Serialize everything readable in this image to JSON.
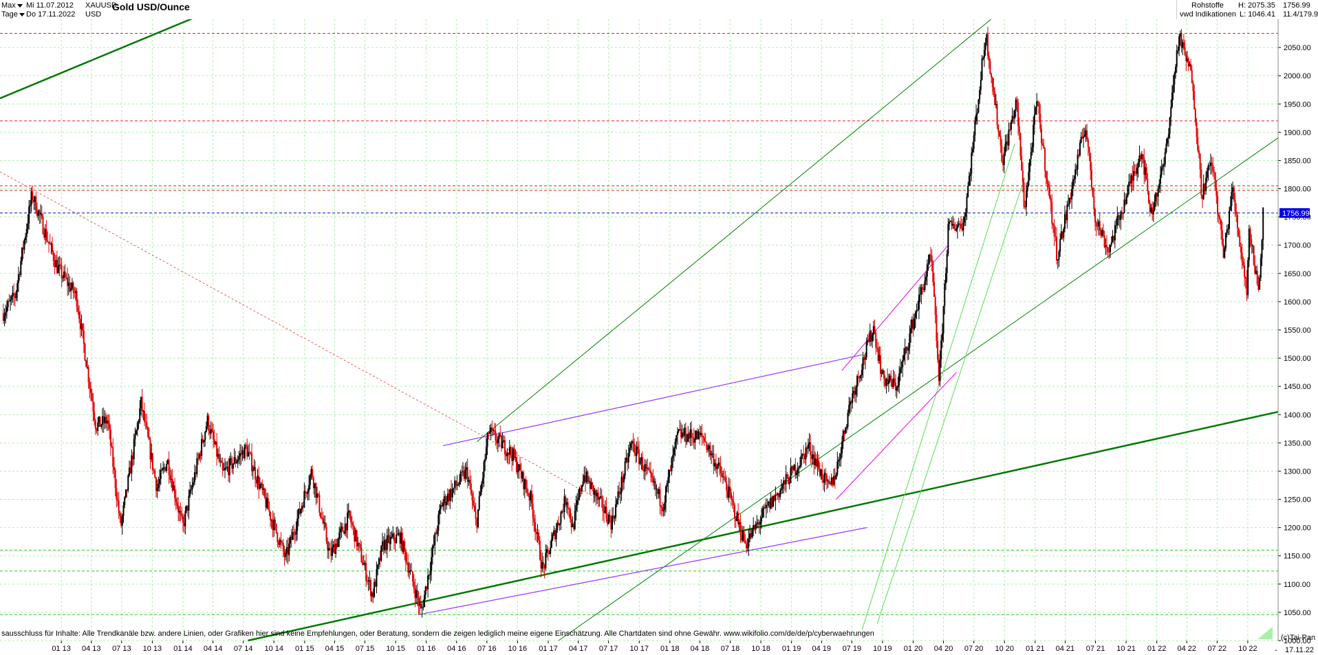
{
  "toolbar": {
    "period_label": "Max",
    "interval_label": "Tage",
    "date_from": "Mi 11.07.2012",
    "date_to": "Do 17.11.2022",
    "symbol": "XAUUSD",
    "currency": "USD",
    "title": "Gold USD/Ounce"
  },
  "info": {
    "category": "Rohstoffe",
    "source": "vwd Indikationen",
    "high": "H: 2075.35",
    "low": "L: 1046.41",
    "last": "1756.99",
    "range": "11.4/179.9"
  },
  "disclaimer": "sausschluss für Inhalte: Alle Trendkanäle bzw. andere Linien, oder Grafiken hier sind keine Empfehlungen, oder Beratung, sondern die zeigen lediglich meine eigene Einschätzung. Alle Chartdaten sind ohne Gewähr.  www.wikifolio.com/de/de/p/cyberwaehrungen",
  "footer": {
    "copyright": "(c)Tai-Pan",
    "end_date": "17.11.22",
    "dash": "-"
  },
  "colors": {
    "up": "#000000",
    "down": "#dd0000",
    "grid": "#aaf0aa",
    "trend": "#008000",
    "purple": "#9933ff",
    "magenta": "#ee22ee",
    "resistance": "#dd2222",
    "last_price_line": "#0000cc",
    "price_tag": "#0000ee"
  },
  "chart_data": {
    "type": "candlestick",
    "title": "Gold USD/Ounce",
    "xlabel": "",
    "ylabel": "",
    "ylim": [
      1000,
      2100
    ],
    "y_ticks": [
      1000,
      1050,
      1100,
      1150,
      1200,
      1250,
      1300,
      1350,
      1400,
      1450,
      1500,
      1550,
      1600,
      1650,
      1700,
      1750,
      1800,
      1850,
      1900,
      1950,
      2000,
      2050
    ],
    "x_ticks": [
      "01 13",
      "04 13",
      "07 13",
      "10 13",
      "01 14",
      "04 14",
      "07 14",
      "10 14",
      "01 15",
      "04 15",
      "07 15",
      "10 15",
      "01 16",
      "04 16",
      "07 16",
      "10 16",
      "01 17",
      "04 17",
      "07 17",
      "10 17",
      "01 18",
      "04 18",
      "07 18",
      "10 18",
      "01 19",
      "04 19",
      "07 19",
      "10 19",
      "01 20",
      "04 20",
      "07 20",
      "10 20",
      "01 21",
      "04 21",
      "07 21",
      "10 21",
      "01 22",
      "04 22",
      "07 22",
      "10 22"
    ],
    "grid": true,
    "last_price": 1756.99,
    "price_keypoints": [
      [
        "2012-07-11",
        1580
      ],
      [
        "2012-08-15",
        1610
      ],
      [
        "2012-10-05",
        1790
      ],
      [
        "2012-11-15",
        1720
      ],
      [
        "2012-12-20",
        1660
      ],
      [
        "2013-02-15",
        1610
      ],
      [
        "2013-04-15",
        1380
      ],
      [
        "2013-05-20",
        1390
      ],
      [
        "2013-06-28",
        1200
      ],
      [
        "2013-08-28",
        1420
      ],
      [
        "2013-10-15",
        1270
      ],
      [
        "2013-11-15",
        1320
      ],
      [
        "2013-12-31",
        1200
      ],
      [
        "2014-03-15",
        1390
      ],
      [
        "2014-04-30",
        1295
      ],
      [
        "2014-07-10",
        1340
      ],
      [
        "2014-09-15",
        1230
      ],
      [
        "2014-11-05",
        1145
      ],
      [
        "2015-01-22",
        1300
      ],
      [
        "2015-03-18",
        1150
      ],
      [
        "2015-05-15",
        1220
      ],
      [
        "2015-07-24",
        1080
      ],
      [
        "2015-08-24",
        1170
      ],
      [
        "2015-10-14",
        1185
      ],
      [
        "2015-12-17",
        1050
      ],
      [
        "2016-02-15",
        1240
      ],
      [
        "2016-05-02",
        1300
      ],
      [
        "2016-05-30",
        1205
      ],
      [
        "2016-07-06",
        1370
      ],
      [
        "2016-09-15",
        1330
      ],
      [
        "2016-11-10",
        1250
      ],
      [
        "2016-12-15",
        1125
      ],
      [
        "2017-02-25",
        1255
      ],
      [
        "2017-03-15",
        1198
      ],
      [
        "2017-04-17",
        1295
      ],
      [
        "2017-07-10",
        1208
      ],
      [
        "2017-09-08",
        1350
      ],
      [
        "2017-12-12",
        1240
      ],
      [
        "2018-01-25",
        1365
      ],
      [
        "2018-04-11",
        1360
      ],
      [
        "2018-06-15",
        1280
      ],
      [
        "2018-08-16",
        1170
      ],
      [
        "2018-10-15",
        1230
      ],
      [
        "2019-01-30",
        1320
      ],
      [
        "2019-02-20",
        1345
      ],
      [
        "2019-04-23",
        1268
      ],
      [
        "2019-05-15",
        1300
      ],
      [
        "2019-06-25",
        1420
      ],
      [
        "2019-09-04",
        1555
      ],
      [
        "2019-10-01",
        1465
      ],
      [
        "2019-11-12",
        1450
      ],
      [
        "2020-01-08",
        1580
      ],
      [
        "2020-02-24",
        1680
      ],
      [
        "2020-03-19",
        1460
      ],
      [
        "2020-04-15",
        1730
      ],
      [
        "2020-06-01",
        1740
      ],
      [
        "2020-08-06",
        2075
      ],
      [
        "2020-09-25",
        1850
      ],
      [
        "2020-11-06",
        1955
      ],
      [
        "2020-11-30",
        1765
      ],
      [
        "2021-01-06",
        1955
      ],
      [
        "2021-03-08",
        1680
      ],
      [
        "2021-06-01",
        1915
      ],
      [
        "2021-06-30",
        1750
      ],
      [
        "2021-08-09",
        1690
      ],
      [
        "2021-11-16",
        1870
      ],
      [
        "2021-12-15",
        1755
      ],
      [
        "2022-01-25",
        1850
      ],
      [
        "2022-03-08",
        2070
      ],
      [
        "2022-04-18",
        1995
      ],
      [
        "2022-05-16",
        1790
      ],
      [
        "2022-06-15",
        1850
      ],
      [
        "2022-07-21",
        1680
      ],
      [
        "2022-08-15",
        1800
      ],
      [
        "2022-09-28",
        1620
      ],
      [
        "2022-10-04",
        1730
      ],
      [
        "2022-11-03",
        1618
      ],
      [
        "2022-11-17",
        1770
      ]
    ],
    "horizontal_levels": [
      {
        "value": 2075,
        "kind": "resistance"
      },
      {
        "value": 1920,
        "kind": "resistance"
      },
      {
        "value": 1805,
        "kind": "resistance"
      },
      {
        "value": 1797,
        "kind": "resistance"
      },
      {
        "value": 1756.99,
        "kind": "last"
      },
      {
        "value": 1160,
        "kind": "support"
      },
      {
        "value": 1123,
        "kind": "support"
      },
      {
        "value": 1046,
        "kind": "support"
      }
    ],
    "trendlines": [
      {
        "kind": "thick",
        "from": [
          "2012-07-01",
          1960
        ],
        "to": [
          "2014-02-01",
          2102
        ]
      },
      {
        "kind": "thick",
        "from": [
          "2014-07-15",
          1000
        ],
        "to": [
          "2022-12-31",
          1405
        ]
      },
      {
        "kind": "thin",
        "from": [
          "2016-06-01",
          1352
        ],
        "to": [
          "2020-09-01",
          2105
        ]
      },
      {
        "kind": "thin",
        "from": [
          "2017-02-01",
          1000
        ],
        "to": [
          "2022-12-31",
          1890
        ]
      },
      {
        "kind": "light",
        "from": [
          "2019-08-01",
          1020
        ],
        "to": [
          "2020-11-01",
          1880
        ]
      },
      {
        "kind": "light",
        "from": [
          "2019-09-15",
          1030
        ],
        "to": [
          "2020-12-01",
          1820
        ]
      },
      {
        "kind": "purple",
        "from": [
          "2016-02-20",
          1345
        ],
        "to": [
          "2019-08-01",
          1506
        ]
      },
      {
        "kind": "purple",
        "from": [
          "2015-12-10",
          1046
        ],
        "to": [
          "2019-08-15",
          1200
        ]
      },
      {
        "kind": "magenta",
        "from": [
          "2019-06-01",
          1478
        ],
        "to": [
          "2020-04-15",
          1700
        ]
      },
      {
        "kind": "magenta",
        "from": [
          "2019-05-15",
          1250
        ],
        "to": [
          "2020-05-10",
          1475
        ]
      },
      {
        "kind": "dashed-red",
        "from": [
          "2012-07-01",
          1830
        ],
        "to": [
          "2017-06-01",
          1250
        ]
      }
    ]
  }
}
